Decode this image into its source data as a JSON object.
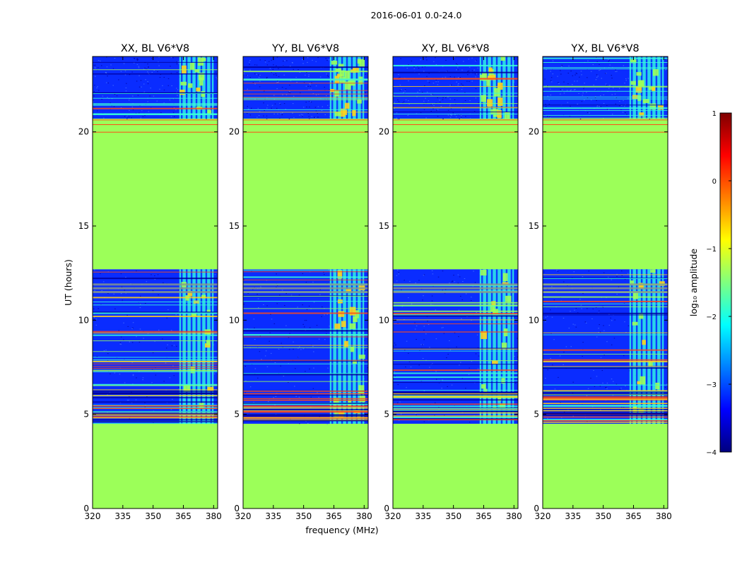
{
  "figure": {
    "suptitle": "2016-06-01 0.0-24.0",
    "ylabel": "UT (hours)",
    "xlabel": "frequency (MHz)"
  },
  "colors": {
    "flagged": "#9cff59",
    "quiet_bg": "#0a2cff",
    "speckle": "#4b78ff",
    "rfi_band": "#2ff0e8",
    "rfi_line_hi": "#ff4a17",
    "rfi_line_mid": "#ffd21c",
    "rfi_line_cyan": "#38ffd8",
    "rfi_line_dark": "#00009b",
    "flag_row_gray": "#8a9a8a"
  },
  "colorbar": {
    "label": "log₁₀ amplitude",
    "vmin": -4,
    "vmax": 1,
    "ticks": [
      {
        "value": 1,
        "label": "1"
      },
      {
        "value": 0,
        "label": "0"
      },
      {
        "value": -1,
        "label": "−1"
      },
      {
        "value": -2,
        "label": "−2"
      },
      {
        "value": -3,
        "label": "−3"
      },
      {
        "value": -4,
        "label": "−4"
      }
    ],
    "stops": [
      "#00007f",
      "#0000ff",
      "#007fff",
      "#00ffff",
      "#7fff7f",
      "#ffff00",
      "#ff7f00",
      "#ff0000",
      "#7f0000"
    ]
  },
  "chart_data": [
    {
      "type": "heatmap",
      "title": "XX, BL V6*V8",
      "xlim": [
        320,
        382
      ],
      "ylim": [
        0,
        24
      ],
      "xticks": [
        {
          "v": 320,
          "l": "320"
        },
        {
          "v": 335,
          "l": "335"
        },
        {
          "v": 350,
          "l": "350"
        },
        {
          "v": 365,
          "l": "365"
        },
        {
          "v": 380,
          "l": "380"
        }
      ],
      "yticks": [
        {
          "v": 0,
          "l": "0"
        },
        {
          "v": 5,
          "l": "5"
        },
        {
          "v": 10,
          "l": "10"
        },
        {
          "v": 15,
          "l": "15"
        },
        {
          "v": 20,
          "l": "20"
        }
      ],
      "show_ylabel": true,
      "show_xlabel": false,
      "flagged_ranges_ut": [
        [
          0,
          4.5
        ],
        [
          12.7,
          20.7
        ]
      ],
      "observed_ranges_ut": [
        [
          4.5,
          12.7
        ],
        [
          20.7,
          24.0
        ]
      ],
      "rfi_freq_band_mhz": [
        363,
        380
      ],
      "rfi_strength": 0.45
    },
    {
      "type": "heatmap",
      "title": "YY, BL V6*V8",
      "xlim": [
        320,
        382
      ],
      "ylim": [
        0,
        24
      ],
      "xticks": [
        {
          "v": 320,
          "l": "320"
        },
        {
          "v": 335,
          "l": "335"
        },
        {
          "v": 350,
          "l": "350"
        },
        {
          "v": 365,
          "l": "365"
        },
        {
          "v": 380,
          "l": "380"
        }
      ],
      "yticks": [
        {
          "v": 0,
          "l": "0"
        },
        {
          "v": 5,
          "l": "5"
        },
        {
          "v": 10,
          "l": "10"
        },
        {
          "v": 15,
          "l": "15"
        },
        {
          "v": 20,
          "l": "20"
        }
      ],
      "show_ylabel": false,
      "show_xlabel": true,
      "flagged_ranges_ut": [
        [
          0,
          4.5
        ],
        [
          12.7,
          20.7
        ]
      ],
      "observed_ranges_ut": [
        [
          4.5,
          12.7
        ],
        [
          20.7,
          24.0
        ]
      ],
      "rfi_freq_band_mhz": [
        363,
        380
      ],
      "rfi_strength": 0.8
    },
    {
      "type": "heatmap",
      "title": "XY, BL V6*V8",
      "xlim": [
        320,
        382
      ],
      "ylim": [
        0,
        24
      ],
      "xticks": [
        {
          "v": 320,
          "l": "320"
        },
        {
          "v": 335,
          "l": "335"
        },
        {
          "v": 350,
          "l": "350"
        },
        {
          "v": 365,
          "l": "365"
        },
        {
          "v": 380,
          "l": "380"
        }
      ],
      "yticks": [
        {
          "v": 0,
          "l": "0"
        },
        {
          "v": 5,
          "l": "5"
        },
        {
          "v": 10,
          "l": "10"
        },
        {
          "v": 15,
          "l": "15"
        },
        {
          "v": 20,
          "l": "20"
        }
      ],
      "show_ylabel": false,
      "show_xlabel": false,
      "flagged_ranges_ut": [
        [
          0,
          4.5
        ],
        [
          12.7,
          20.7
        ]
      ],
      "observed_ranges_ut": [
        [
          4.5,
          12.7
        ],
        [
          20.7,
          24.0
        ]
      ],
      "rfi_freq_band_mhz": [
        363,
        380
      ],
      "rfi_strength": 0.55
    },
    {
      "type": "heatmap",
      "title": "YX, BL V6*V8",
      "xlim": [
        320,
        382
      ],
      "ylim": [
        0,
        24
      ],
      "xticks": [
        {
          "v": 320,
          "l": "320"
        },
        {
          "v": 335,
          "l": "335"
        },
        {
          "v": 350,
          "l": "350"
        },
        {
          "v": 365,
          "l": "365"
        },
        {
          "v": 380,
          "l": "380"
        }
      ],
      "yticks": [
        {
          "v": 0,
          "l": "0"
        },
        {
          "v": 5,
          "l": "5"
        },
        {
          "v": 10,
          "l": "10"
        },
        {
          "v": 15,
          "l": "15"
        },
        {
          "v": 20,
          "l": "20"
        }
      ],
      "show_ylabel": false,
      "show_xlabel": false,
      "flagged_ranges_ut": [
        [
          0,
          4.5
        ],
        [
          12.7,
          20.7
        ]
      ],
      "observed_ranges_ut": [
        [
          4.5,
          12.7
        ],
        [
          20.7,
          24.0
        ]
      ],
      "rfi_freq_band_mhz": [
        363,
        380
      ],
      "rfi_strength": 0.5
    }
  ]
}
